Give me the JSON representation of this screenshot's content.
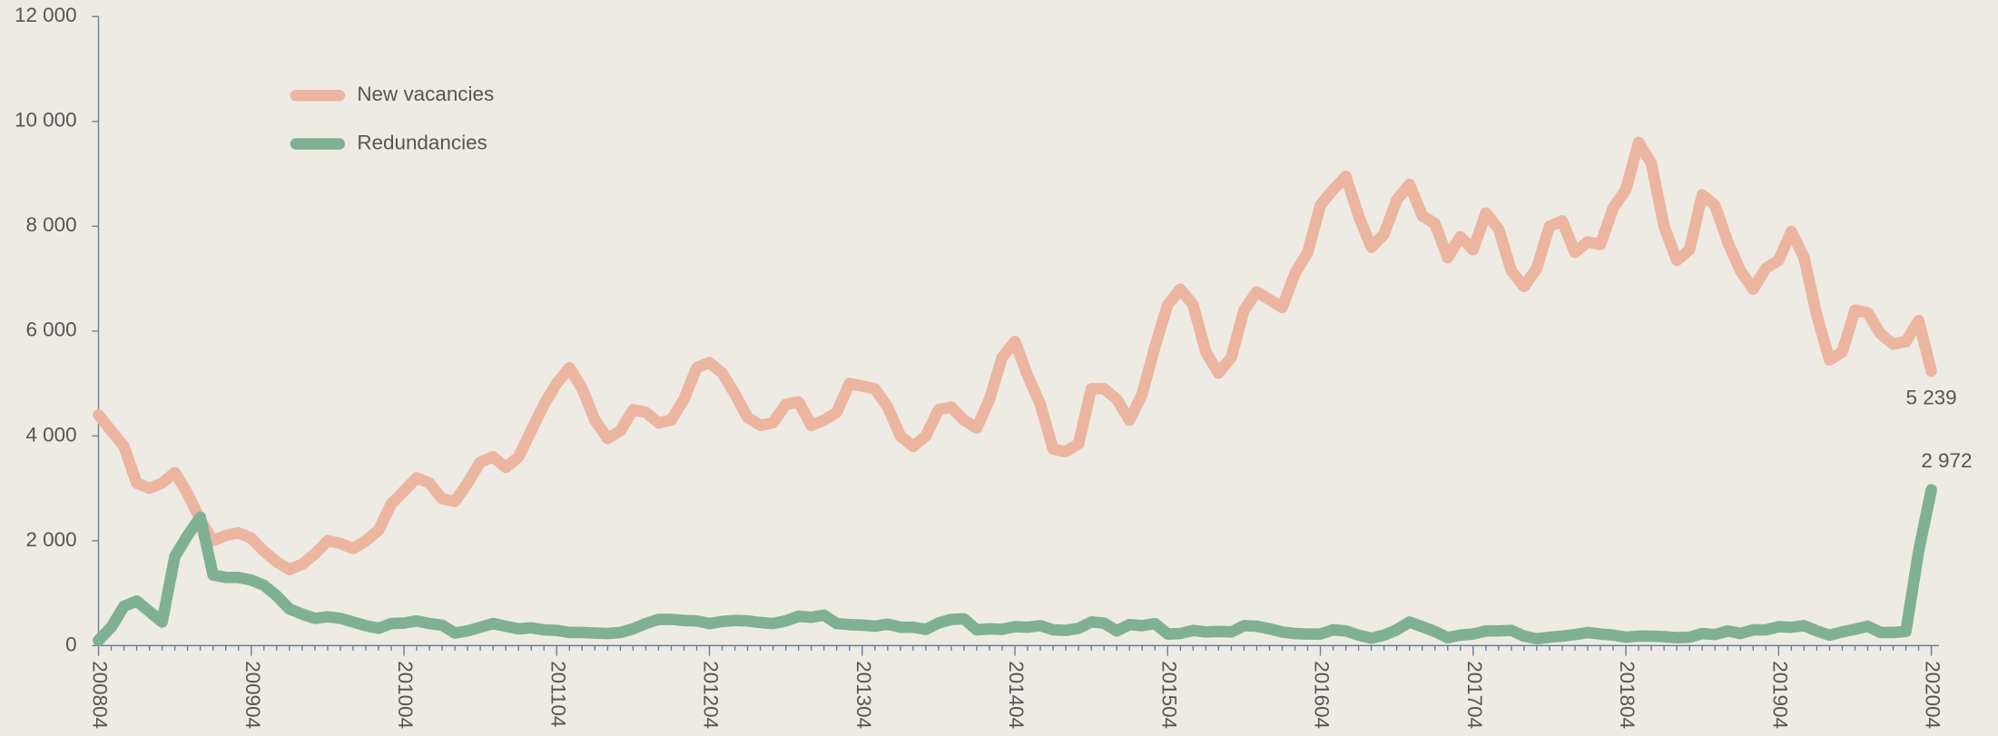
{
  "chart_data": {
    "type": "line",
    "categories": [
      "200804",
      null,
      null,
      null,
      null,
      null,
      null,
      null,
      null,
      null,
      null,
      null,
      "200904",
      null,
      null,
      null,
      null,
      null,
      null,
      null,
      null,
      null,
      null,
      null,
      "201004",
      null,
      null,
      null,
      null,
      null,
      null,
      null,
      null,
      null,
      null,
      null,
      "201104",
      null,
      null,
      null,
      null,
      null,
      null,
      null,
      null,
      null,
      null,
      null,
      "201204",
      null,
      null,
      null,
      null,
      null,
      null,
      null,
      null,
      null,
      null,
      null,
      "201304",
      null,
      null,
      null,
      null,
      null,
      null,
      null,
      null,
      null,
      null,
      null,
      "201404",
      null,
      null,
      null,
      null,
      null,
      null,
      null,
      null,
      null,
      null,
      null,
      "201504",
      null,
      null,
      null,
      null,
      null,
      null,
      null,
      null,
      null,
      null,
      null,
      "201604",
      null,
      null,
      null,
      null,
      null,
      null,
      null,
      null,
      null,
      null,
      null,
      "201704",
      null,
      null,
      null,
      null,
      null,
      null,
      null,
      null,
      null,
      null,
      null,
      "201804",
      null,
      null,
      null,
      null,
      null,
      null,
      null,
      null,
      null,
      null,
      null,
      "201904",
      null,
      null,
      null,
      null,
      null,
      null,
      null,
      null,
      null,
      null,
      null,
      "202004"
    ],
    "series": [
      {
        "name": "New vacancies",
        "color": "#ebb5a0",
        "values": [
          4400,
          4100,
          3800,
          3100,
          3000,
          3100,
          3300,
          2900,
          2400,
          2000,
          2100,
          2150,
          2050,
          1800,
          1600,
          1450,
          1550,
          1750,
          2000,
          1950,
          1850,
          2000,
          2200,
          2700,
          2950,
          3200,
          3100,
          2800,
          2750,
          3100,
          3500,
          3600,
          3400,
          3600,
          4100,
          4600,
          5000,
          5300,
          4900,
          4300,
          3950,
          4100,
          4500,
          4450,
          4250,
          4300,
          4700,
          5300,
          5400,
          5200,
          4800,
          4350,
          4200,
          4250,
          4600,
          4650,
          4200,
          4300,
          4450,
          5000,
          4950,
          4900,
          4550,
          4000,
          3800,
          4000,
          4500,
          4550,
          4300,
          4150,
          4700,
          5500,
          5800,
          5150,
          4600,
          3750,
          3700,
          3850,
          4900,
          4900,
          4700,
          4300,
          4800,
          5700,
          6500,
          6800,
          6500,
          5600,
          5200,
          5500,
          6400,
          6750,
          6600,
          6450,
          7100,
          7500,
          8400,
          8700,
          8950,
          8200,
          7600,
          7850,
          8500,
          8800,
          8200,
          8050,
          7400,
          7800,
          7550,
          8250,
          7950,
          7150,
          6850,
          7200,
          8000,
          8100,
          7500,
          7700,
          7650,
          8350,
          8700,
          9600,
          9200,
          8000,
          7350,
          7550,
          8600,
          8400,
          7700,
          7150,
          6800,
          7200,
          7350,
          7900,
          7400,
          6300,
          5450,
          5600,
          6400,
          6350,
          5950,
          5750,
          5800,
          6200,
          5239
        ],
        "value_labels": [
          null,
          null,
          null,
          null,
          null,
          null,
          null,
          null,
          null,
          null,
          null,
          null,
          null,
          null,
          null,
          null,
          null,
          null,
          null,
          null,
          null,
          null,
          null,
          null,
          null,
          null,
          null,
          null,
          null,
          null,
          null,
          null,
          null,
          null,
          null,
          null,
          null,
          null,
          null,
          null,
          null,
          null,
          null,
          null,
          null,
          null,
          null,
          null,
          null,
          null,
          null,
          null,
          null,
          null,
          null,
          null,
          null,
          null,
          null,
          null,
          null,
          null,
          null,
          null,
          null,
          null,
          null,
          null,
          null,
          null,
          null,
          null,
          null,
          null,
          null,
          null,
          null,
          null,
          null,
          null,
          null,
          null,
          null,
          null,
          null,
          null,
          null,
          null,
          null,
          null,
          null,
          null,
          null,
          null,
          null,
          null,
          null,
          null,
          null,
          null,
          null,
          null,
          null,
          null,
          null,
          null,
          null,
          null,
          null,
          null,
          null,
          null,
          null,
          null,
          null,
          null,
          null,
          null,
          null,
          null,
          null,
          null,
          null,
          null,
          null,
          null,
          null,
          null,
          null,
          null,
          null,
          null,
          null,
          null,
          null,
          null,
          null,
          null,
          null,
          null,
          null,
          null,
          null,
          null,
          "5 239"
        ]
      },
      {
        "name": "Redundancies",
        "color": "#7fb094",
        "values": [
          100,
          350,
          750,
          850,
          650,
          450,
          1700,
          2100,
          2450,
          1350,
          1300,
          1300,
          1250,
          1150,
          950,
          700,
          600,
          520,
          550,
          520,
          450,
          380,
          330,
          420,
          430,
          470,
          420,
          390,
          240,
          280,
          350,
          420,
          370,
          320,
          340,
          300,
          290,
          250,
          250,
          240,
          230,
          250,
          320,
          420,
          500,
          500,
          480,
          470,
          420,
          460,
          480,
          470,
          440,
          420,
          470,
          560,
          540,
          580,
          420,
          400,
          390,
          370,
          410,
          350,
          350,
          310,
          430,
          500,
          510,
          300,
          320,
          310,
          360,
          350,
          380,
          300,
          290,
          330,
          450,
          430,
          280,
          400,
          380,
          420,
          220,
          230,
          290,
          260,
          270,
          260,
          380,
          370,
          320,
          260,
          230,
          220,
          220,
          300,
          280,
          200,
          140,
          200,
          300,
          450,
          360,
          270,
          150,
          200,
          220,
          280,
          280,
          290,
          180,
          130,
          160,
          180,
          210,
          250,
          220,
          200,
          160,
          180,
          180,
          170,
          150,
          160,
          230,
          210,
          280,
          230,
          300,
          300,
          360,
          350,
          380,
          280,
          200,
          260,
          310,
          370,
          250,
          250,
          270,
          1800,
          2972
        ],
        "value_labels": [
          null,
          null,
          null,
          null,
          null,
          null,
          null,
          null,
          null,
          null,
          null,
          null,
          null,
          null,
          null,
          null,
          null,
          null,
          null,
          null,
          null,
          null,
          null,
          null,
          null,
          null,
          null,
          null,
          null,
          null,
          null,
          null,
          null,
          null,
          null,
          null,
          null,
          null,
          null,
          null,
          null,
          null,
          null,
          null,
          null,
          null,
          null,
          null,
          null,
          null,
          null,
          null,
          null,
          null,
          null,
          null,
          null,
          null,
          null,
          null,
          null,
          null,
          null,
          null,
          null,
          null,
          null,
          null,
          null,
          null,
          null,
          null,
          null,
          null,
          null,
          null,
          null,
          null,
          null,
          null,
          null,
          null,
          null,
          null,
          null,
          null,
          null,
          null,
          null,
          null,
          null,
          null,
          null,
          null,
          null,
          null,
          null,
          null,
          null,
          null,
          null,
          null,
          null,
          null,
          null,
          null,
          null,
          null,
          null,
          null,
          null,
          null,
          null,
          null,
          null,
          null,
          null,
          null,
          null,
          null,
          null,
          null,
          null,
          null,
          null,
          null,
          null,
          null,
          null,
          null,
          null,
          null,
          null,
          null,
          null,
          null,
          null,
          null,
          null,
          null,
          null,
          null,
          null,
          null,
          "2 972"
        ]
      }
    ],
    "ylim": [
      0,
      12000
    ],
    "yticks": [
      0,
      {
        "value": 2000,
        "label": "2 000"
      },
      {
        "value": 4000,
        "label": "4 000"
      },
      {
        "value": 6000,
        "label": "6 000"
      },
      {
        "value": 8000,
        "label": "8 000"
      },
      {
        "value": 10000,
        "label": "10 000"
      },
      {
        "value": 12000,
        "label": "12 000"
      }
    ],
    "grid": false,
    "legend": "upper-left"
  }
}
